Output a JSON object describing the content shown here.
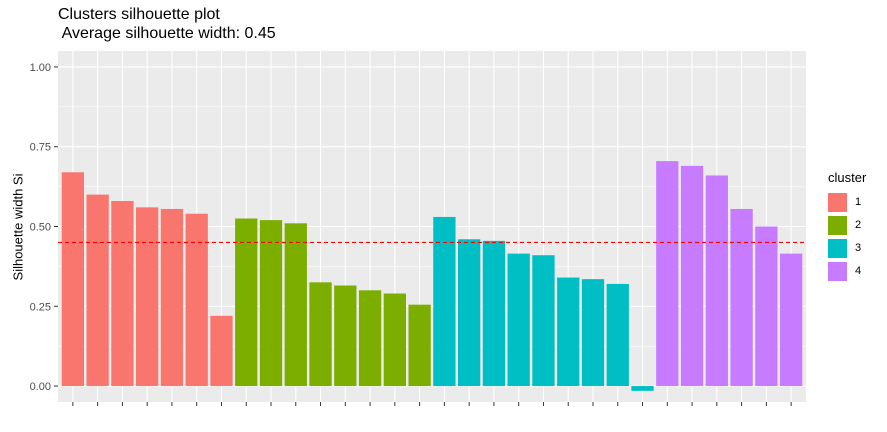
{
  "chart_data": {
    "type": "bar",
    "title": "Clusters silhouette plot",
    "subtitle": " Average silhouette width: 0.45",
    "ylabel": "Silhouette width Si",
    "xlabel": "",
    "ylim": [
      -0.05,
      1.05
    ],
    "yticks": [
      "0.00",
      "0.25",
      "0.50",
      "0.75",
      "1.00"
    ],
    "average_line": 0.45,
    "grid": true,
    "legend": {
      "title": "cluster",
      "placement": "right"
    },
    "series": [
      {
        "name": "1",
        "color": "#F8766D",
        "values": [
          0.67,
          0.6,
          0.58,
          0.56,
          0.555,
          0.54,
          0.22
        ]
      },
      {
        "name": "2",
        "color": "#7CAE00",
        "values": [
          0.525,
          0.52,
          0.51,
          0.325,
          0.315,
          0.3,
          0.29,
          0.255
        ]
      },
      {
        "name": "3",
        "color": "#00BFC4",
        "values": [
          0.53,
          0.46,
          0.455,
          0.415,
          0.41,
          0.34,
          0.335,
          0.32,
          -0.015
        ]
      },
      {
        "name": "4",
        "color": "#C77CFF",
        "values": [
          0.705,
          0.69,
          0.66,
          0.555,
          0.5,
          0.415
        ]
      }
    ]
  }
}
